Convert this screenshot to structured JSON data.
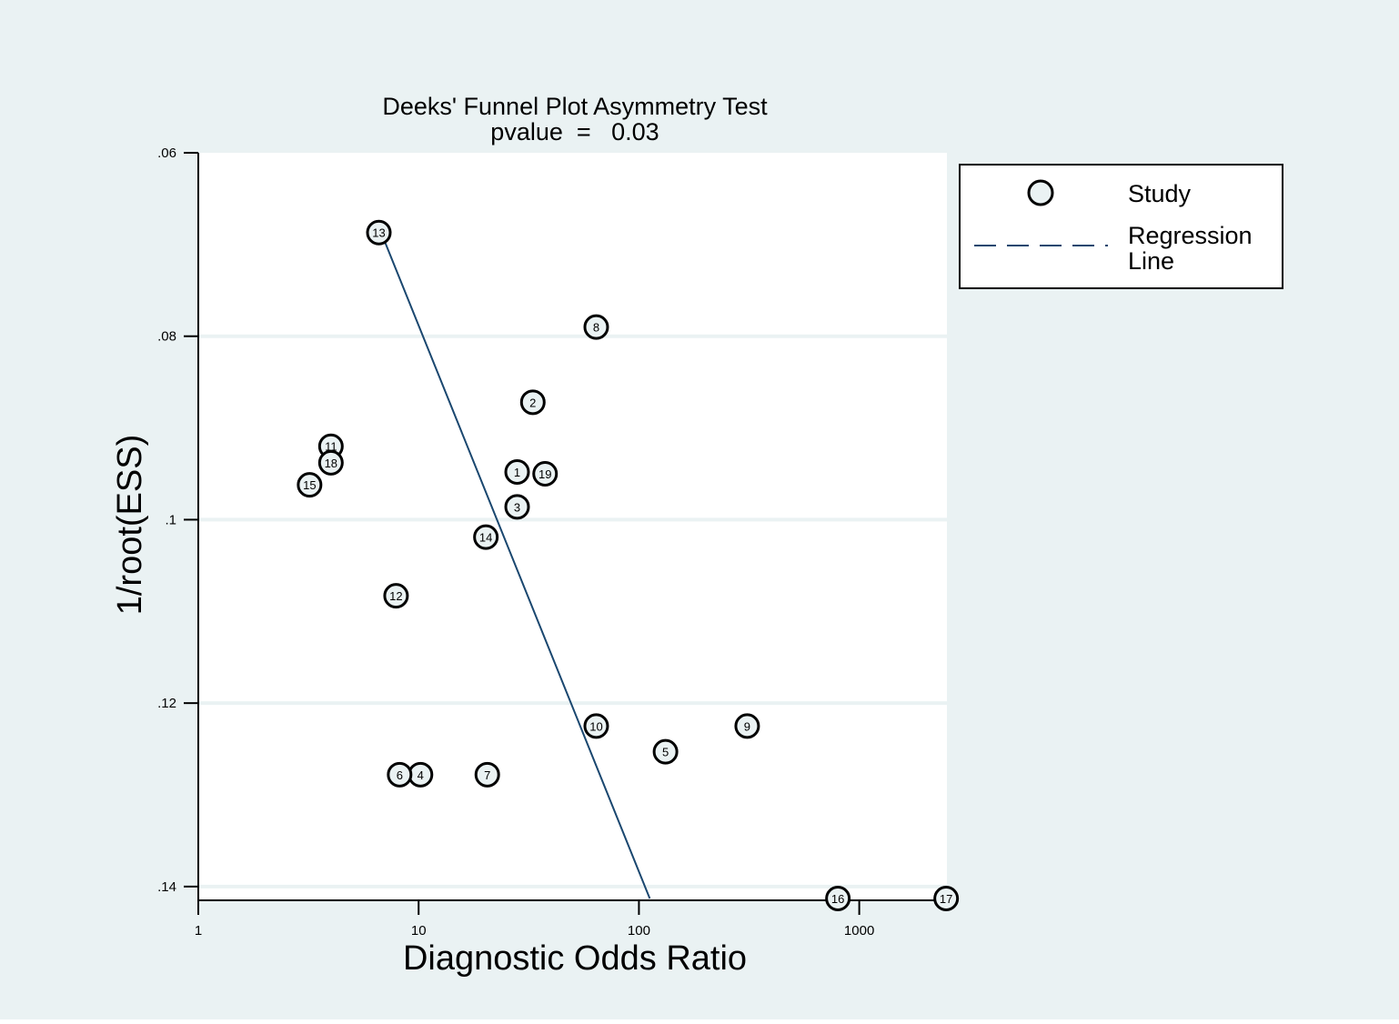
{
  "chart_data": {
    "type": "scatter",
    "title": "Deeks' Funnel Plot Asymmetry Test",
    "subtitle": "pvalue  =   0.03",
    "xlabel": "Diagnostic Odds Ratio",
    "ylabel": "1/root(ESS)",
    "x_scale": "log",
    "xlim": [
      1,
      2500
    ],
    "x_ticks": [
      1,
      10,
      100,
      1000
    ],
    "x_tick_labels": [
      "1",
      "10",
      "100",
      "1000"
    ],
    "ylim": [
      0.06,
      0.1415
    ],
    "y_reversed": true,
    "y_ticks": [
      0.06,
      0.08,
      0.1,
      0.12,
      0.14
    ],
    "y_tick_labels": [
      ".06",
      ".08",
      ".1",
      ".12",
      ".14"
    ],
    "grid": "horizontal",
    "legend_position": "right",
    "legend": [
      {
        "label": "Study",
        "marker": "circle"
      },
      {
        "label": "Regression",
        "label2": "Line",
        "marker": "dashed-line"
      }
    ],
    "series": [
      {
        "name": "Study",
        "points": [
          {
            "label": "1",
            "x": 28,
            "y": 0.0948
          },
          {
            "label": "2",
            "x": 33,
            "y": 0.0872
          },
          {
            "label": "3",
            "x": 28,
            "y": 0.0986
          },
          {
            "label": "4",
            "x": 10.2,
            "y": 0.1278
          },
          {
            "label": "5",
            "x": 132,
            "y": 0.1253
          },
          {
            "label": "6",
            "x": 8.2,
            "y": 0.1278
          },
          {
            "label": "7",
            "x": 20.5,
            "y": 0.1278
          },
          {
            "label": "8",
            "x": 64,
            "y": 0.079
          },
          {
            "label": "9",
            "x": 310,
            "y": 0.1225
          },
          {
            "label": "10",
            "x": 64,
            "y": 0.1225
          },
          {
            "label": "11",
            "x": 4.0,
            "y": 0.092
          },
          {
            "label": "12",
            "x": 7.9,
            "y": 0.1083
          },
          {
            "label": "13",
            "x": 6.6,
            "y": 0.0687
          },
          {
            "label": "14",
            "x": 20.2,
            "y": 0.1019
          },
          {
            "label": "15",
            "x": 3.2,
            "y": 0.0962
          },
          {
            "label": "16",
            "x": 800,
            "y": 0.1413
          },
          {
            "label": "17",
            "x": 2480,
            "y": 0.1413
          },
          {
            "label": "18",
            "x": 4.0,
            "y": 0.0938
          },
          {
            "label": "19",
            "x": 37.5,
            "y": 0.095
          }
        ]
      },
      {
        "name": "Regression Line",
        "line": [
          {
            "x": 7.0,
            "y": 0.0696
          },
          {
            "x": 112,
            "y": 0.1413
          }
        ]
      }
    ],
    "colors": {
      "background": "#eaf2f3",
      "plot_background": "#ffffff",
      "grid": "#eaf2f3",
      "marker_fill": "#eaf2f3",
      "marker_stroke": "#000000",
      "regression_line": "#1a476f"
    }
  }
}
